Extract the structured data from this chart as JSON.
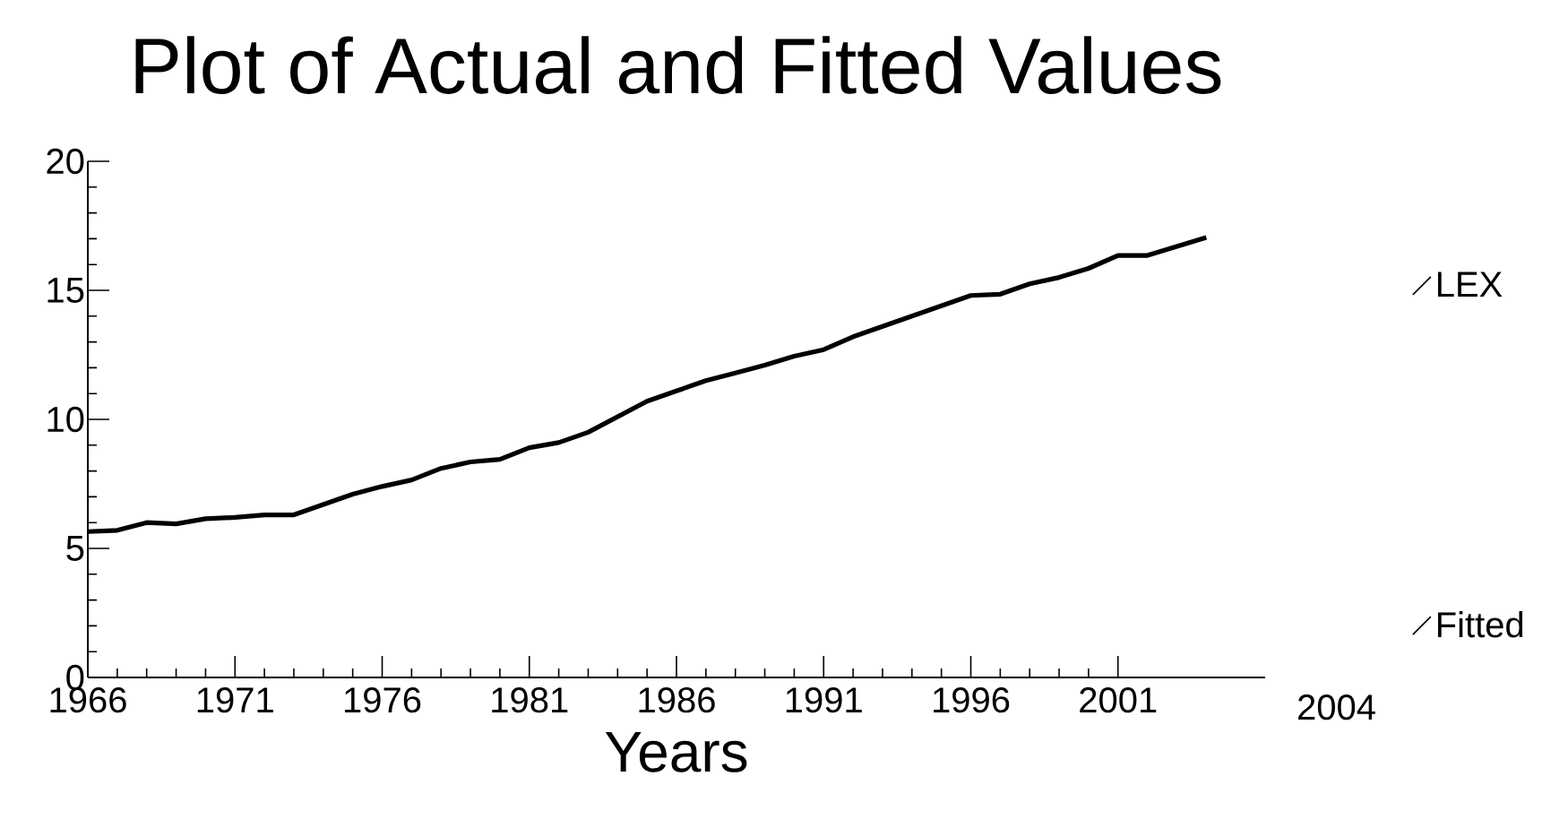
{
  "chart_data": {
    "type": "line",
    "title": "Plot of Actual and Fitted Values",
    "xlabel": "Years",
    "x": [
      1966,
      1967,
      1968,
      1969,
      1970,
      1971,
      1972,
      1973,
      1974,
      1975,
      1976,
      1977,
      1978,
      1979,
      1980,
      1981,
      1982,
      1983,
      1984,
      1985,
      1986,
      1987,
      1988,
      1989,
      1990,
      1991,
      1992,
      1993,
      1994,
      1995,
      1996,
      1997,
      1998,
      1999,
      2000,
      2001,
      2002,
      2003,
      2004
    ],
    "series": [
      {
        "name": "LEX",
        "color": "#000000",
        "values": [
          5.65,
          5.7,
          6.0,
          5.95,
          6.15,
          6.2,
          6.3,
          6.3,
          6.7,
          7.1,
          7.4,
          7.65,
          8.1,
          8.35,
          8.45,
          8.9,
          9.1,
          9.5,
          10.1,
          10.7,
          11.1,
          11.5,
          11.8,
          12.1,
          12.45,
          12.7,
          13.2,
          13.6,
          14.0,
          14.4,
          14.8,
          14.85,
          15.25,
          15.5,
          15.85,
          16.35,
          16.35,
          16.7,
          17.05
        ]
      },
      {
        "name": "Fitted",
        "color": "#000000",
        "values": [
          null,
          null,
          null,
          null,
          null,
          null,
          null,
          null,
          null,
          null,
          null,
          null,
          null,
          null,
          null,
          null,
          null,
          null,
          null,
          null,
          null,
          null,
          null,
          null,
          null,
          null,
          null,
          null,
          null,
          null,
          null,
          null,
          null,
          null,
          null,
          null,
          null,
          null,
          null
        ]
      }
    ],
    "xlim": [
      1966,
      2006
    ],
    "xticks": [
      1966,
      1971,
      1976,
      1981,
      1986,
      1991,
      1996,
      2001
    ],
    "ylim": [
      0,
      20
    ],
    "yticks": [
      0,
      5,
      10,
      15,
      20
    ],
    "annotations": [
      "2004"
    ],
    "grid": false,
    "legend": "right",
    "marker": "none",
    "line_style": "solid"
  }
}
